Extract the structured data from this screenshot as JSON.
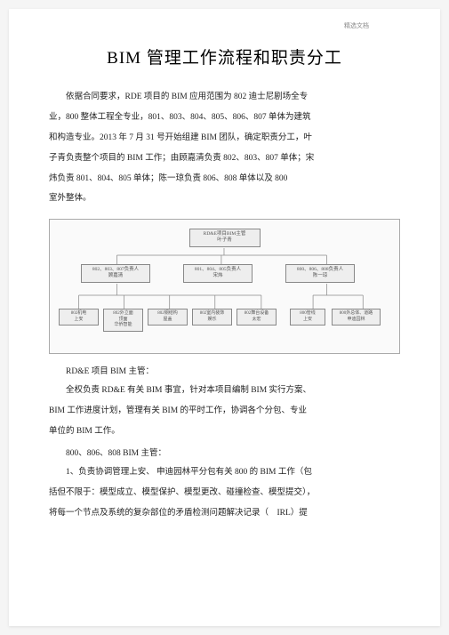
{
  "header_mark": "精选文档",
  "title": "BIM 管理工作流程和职责分工",
  "p1_l1": "依据合同要求，RDE 项目的 BIM 应用范围为 802 迪士尼剧场全专",
  "p1_l2": "业，800 整体工程全专业，801、803、804、805、806、807 单体为建筑",
  "p1_l3": "和构造专业。2013 年 7 月 31 号开始组建 BIM 团队，确定职责分工，叶",
  "p1_l4": "子青负责整个项目的 BIM 工作；由顾嘉清负责 802、803、807 单体；宋",
  "p1_l5": "炜负责 801、804、805 单体；陈一琼负责 806、808 单体以及 800",
  "p1_l6": "室外整体。",
  "diagram": {
    "top_node": "RD&E项目BIM主管\n叶子青",
    "mid1": "802、803、807负责人\n顾嘉清",
    "mid2": "801、804、805负责人\n宋炜",
    "mid3": "800、806、808负责人\n陈一琼",
    "leaf1": "802机电\n上安",
    "leaf2": "802外立面\n顶面\n华侨智能",
    "leaf3": "802钢结构\n屋盖",
    "leaf4": "802室内装饰\n娱乐",
    "leaf5": "802舞台设备\n太宏",
    "leaf6": "800管线\n上安",
    "leaf7": "800外总体、道路\n申迪园林",
    "line_color": "#888888"
  },
  "h1": "RD&E 项目 BIM 主管：",
  "p2_l1": "全权负责 RD&E 有关 BIM 事宜，针对本项目编制  BIM 实行方案、",
  "p2_l2": "BIM 工作进度计划，管理有关  BIM 的平时工作，协调各个分包、专业",
  "p2_l3": "单位的 BIM 工作。",
  "h2": "800、806、808 BIM 主管：",
  "p3_l1": "1、负责协调管理上安、 申迪园林平分包有关 800 的 BIM 工作（包",
  "p3_l2": "括但不限于：模型成立、模型保护、模型更改、碰撞检查、模型提交），",
  "p3_l3": "将每一个节点及系统的复杂部位的矛盾检测问题解决记录（ IRL）提"
}
